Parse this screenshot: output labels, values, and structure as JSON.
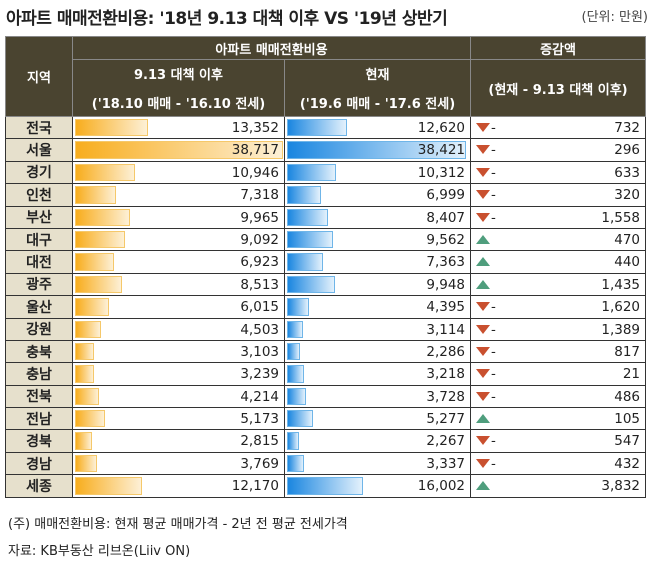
{
  "title": "아파트 매매전환비용: '18년 9.13 대책 이후 VS '19년 상반기",
  "unit": "(단위: 만원)",
  "header": {
    "region": "지역",
    "group": "아파트 매매전환비용",
    "change": "증감액",
    "col1": "9.13 대책 이후",
    "col1_sub": "('18.10 매매 - '16.10 전세)",
    "col2": "현재",
    "col2_sub": "('19.6 매매 - '17.6 전세)",
    "col3_sub": "(현재 - 9.13 대책 이후)"
  },
  "colors": {
    "header": "#4a4430",
    "bar1": "#f8ad1d",
    "bar2": "#1a86e0",
    "down": "#c9502f",
    "up": "#4f9e7d"
  },
  "rows": [
    {
      "region": "전국",
      "before": "13,352",
      "now": "12,620",
      "dir": "down",
      "change": "732"
    },
    {
      "region": "서울",
      "before": "38,717",
      "now": "38,421",
      "dir": "down",
      "change": "296"
    },
    {
      "region": "경기",
      "before": "10,946",
      "now": "10,312",
      "dir": "down",
      "change": "633"
    },
    {
      "region": "인천",
      "before": "7,318",
      "now": "6,999",
      "dir": "down",
      "change": "320"
    },
    {
      "region": "부산",
      "before": "9,965",
      "now": "8,407",
      "dir": "down",
      "change": "1,558"
    },
    {
      "region": "대구",
      "before": "9,092",
      "now": "9,562",
      "dir": "up",
      "change": "470"
    },
    {
      "region": "대전",
      "before": "6,923",
      "now": "7,363",
      "dir": "up",
      "change": "440"
    },
    {
      "region": "광주",
      "before": "8,513",
      "now": "9,948",
      "dir": "up",
      "change": "1,435"
    },
    {
      "region": "울산",
      "before": "6,015",
      "now": "4,395",
      "dir": "down",
      "change": "1,620"
    },
    {
      "region": "강원",
      "before": "4,503",
      "now": "3,114",
      "dir": "down",
      "change": "1,389"
    },
    {
      "region": "충북",
      "before": "3,103",
      "now": "2,286",
      "dir": "down",
      "change": "817"
    },
    {
      "region": "충남",
      "before": "3,239",
      "now": "3,218",
      "dir": "down",
      "change": "21"
    },
    {
      "region": "전북",
      "before": "4,214",
      "now": "3,728",
      "dir": "down",
      "change": "486"
    },
    {
      "region": "전남",
      "before": "5,173",
      "now": "5,277",
      "dir": "up",
      "change": "105"
    },
    {
      "region": "경북",
      "before": "2,815",
      "now": "2,267",
      "dir": "down",
      "change": "547"
    },
    {
      "region": "경남",
      "before": "3,769",
      "now": "3,337",
      "dir": "down",
      "change": "432"
    },
    {
      "region": "세종",
      "before": "12,170",
      "now": "16,002",
      "dir": "up",
      "change": "3,832"
    }
  ],
  "minus": "-",
  "note": "(주) 매매전환비용:  현재 평균 매매가격 - 2년 전 평균 전세가격",
  "source": "자료: KB부동산 리브온(Liiv ON)"
}
